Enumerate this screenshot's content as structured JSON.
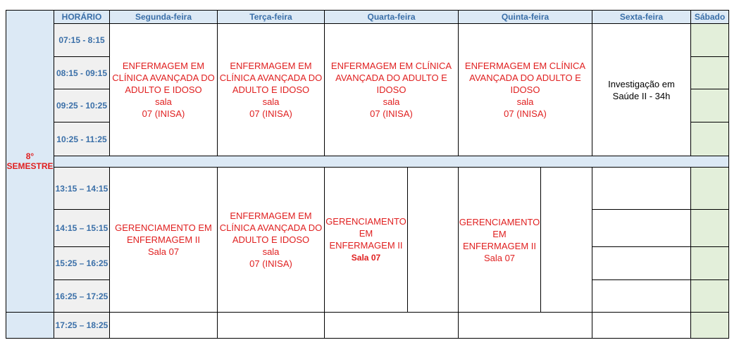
{
  "semester": "8°\nSEMESTRE",
  "header": [
    "HORÁRIO",
    "Segunda-feira",
    "Terça-feira",
    "Quarta-feira",
    "Quinta-feira",
    "Sexta-feira",
    "Sábado"
  ],
  "times": [
    "07:15 - 8:15",
    "08:15 - 09:15",
    "09:25 - 10:25",
    "10:25 - 11:25",
    "13:15 – 14:15",
    "14:15 – 15:15",
    "15:25 – 16:25",
    "16:25 – 17:25",
    "17:25 – 18:25"
  ],
  "morning": {
    "mon": "ENFERMAGEM EM\nCLÍNICA AVANÇADA DO\nADULTO E IDOSO\nsala\n07 (INISA)",
    "tue": "ENFERMAGEM EM\nCLÍNICA AVANÇADA DO\nADULTO E IDOSO\nsala\n07 (INISA)",
    "wed": "ENFERMAGEM EM CLÍNICA\nAVANÇADA DO ADULTO E\nIDOSO\nsala\n07 (INISA)",
    "thu": "ENFERMAGEM EM CLÍNICA\nAVANÇADA DO ADULTO E\nIDOSO\nsala\n07 (INISA)",
    "fri": "Investigação em\nSaúde II - 34h"
  },
  "afternoon": {
    "mon": "GERENCIAMENTO EM\nENFERMAGEM II\nSala 07",
    "tue": "ENFERMAGEM EM\nCLÍNICA AVANÇADA DO\nADULTO E IDOSO\nsala\n07 (INISA)",
    "wed": "GERENCIAMENTO\nEM\nENFERMAGEM II",
    "wed_room": "Sala 07",
    "thu": "GERENCIAMENTO\nEM\nENFERMAGEM II\nSala 07"
  }
}
